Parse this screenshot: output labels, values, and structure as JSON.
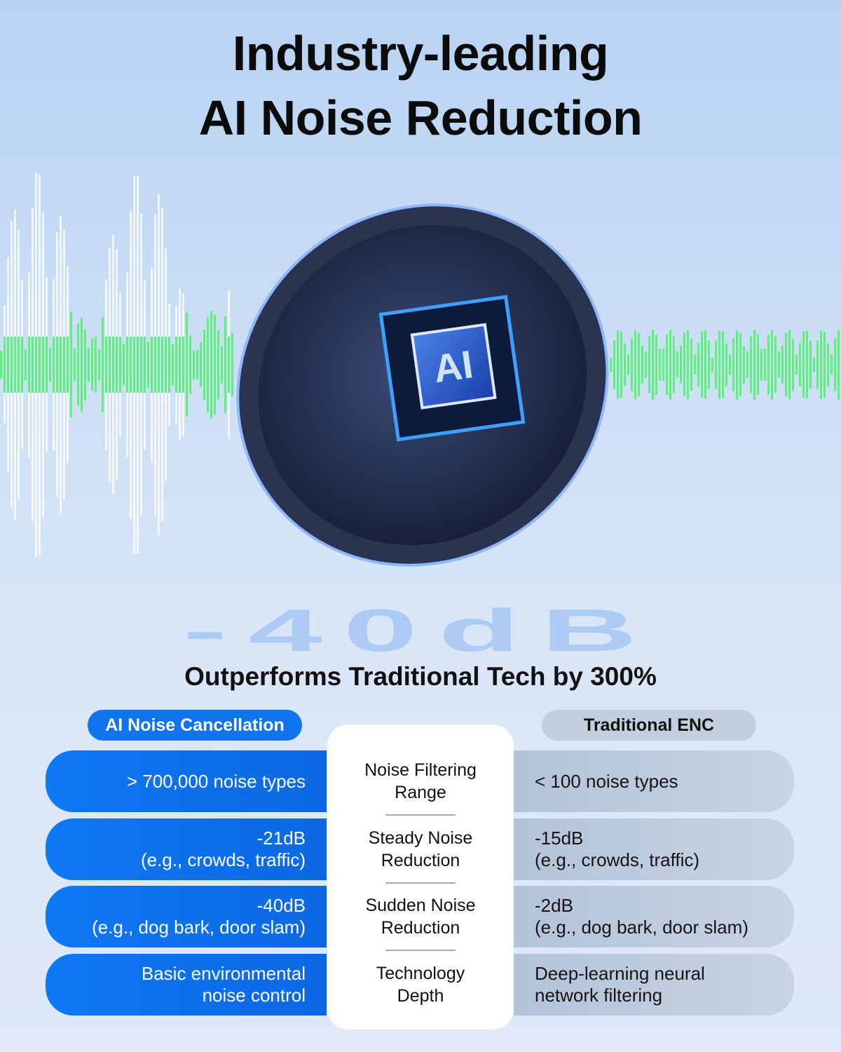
{
  "headline": {
    "line1": "Industry-leading",
    "line2": "AI Noise Reduction"
  },
  "chip_label": "AI",
  "background_text": "-40dB",
  "subtitle": "Outperforms Traditional Tech by 300%",
  "comparison": {
    "left_header": "AI Noise Cancellation",
    "right_header": "Traditional ENC",
    "rows": [
      {
        "label": [
          "Noise Filtering",
          "Range"
        ],
        "left": [
          "> 700,000 noise types"
        ],
        "right": [
          "< 100 noise types"
        ]
      },
      {
        "label": [
          "Steady Noise",
          "Reduction"
        ],
        "left": [
          "-21dB",
          "(e.g., crowds, traffic)"
        ],
        "right": [
          "-15dB",
          "(e.g., crowds, traffic)"
        ]
      },
      {
        "label": [
          "Sudden Noise",
          "Reduction"
        ],
        "left": [
          "-40dB",
          "(e.g., dog bark, door slam)"
        ],
        "right": [
          "-2dB",
          "(e.g., dog bark, door slam)"
        ]
      },
      {
        "label": [
          "Technology",
          "Depth"
        ],
        "left": [
          "Basic environmental",
          "noise control"
        ],
        "right": [
          "Deep-learning neural",
          "network filtering"
        ]
      }
    ]
  },
  "colors": {
    "accent_blue": "#0f74ee",
    "traditional_gray": "#c2cfdf",
    "wave_green": "#5df07a"
  }
}
